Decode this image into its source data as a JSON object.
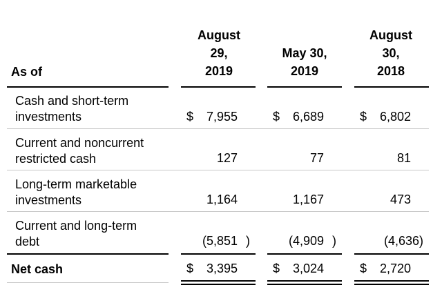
{
  "table": {
    "row_header_label": "As of",
    "columns": [
      "August\n29,\n2019",
      "May 30,\n2019",
      "August\n30,\n2018"
    ],
    "rows": [
      {
        "label": "Cash and short-term\ninvestments",
        "cells": [
          {
            "currency": "$",
            "value": "7,955",
            "close": ""
          },
          {
            "currency": "$",
            "value": "6,689",
            "close": ""
          },
          {
            "currency": "$",
            "value": "6,802",
            "close": ""
          }
        ]
      },
      {
        "label": "Current and noncurrent\nrestricted cash",
        "cells": [
          {
            "currency": "",
            "value": "127",
            "close": ""
          },
          {
            "currency": "",
            "value": "77",
            "close": ""
          },
          {
            "currency": "",
            "value": "81",
            "close": ""
          }
        ]
      },
      {
        "label": "Long-term marketable\ninvestments",
        "cells": [
          {
            "currency": "",
            "value": "1,164",
            "close": ""
          },
          {
            "currency": "",
            "value": "1,167",
            "close": ""
          },
          {
            "currency": "",
            "value": "473",
            "close": ""
          }
        ]
      },
      {
        "label": "Current and long-term\ndebt",
        "cells": [
          {
            "currency": "",
            "value": "(5,851",
            "close": ")"
          },
          {
            "currency": "",
            "value": "(4,909",
            "close": ")"
          },
          {
            "currency": "",
            "value": "(4,636",
            "close": ")"
          }
        ]
      },
      {
        "label": "Net cash",
        "cells": [
          {
            "currency": "$",
            "value": "3,395",
            "close": ""
          },
          {
            "currency": "$",
            "value": "3,024",
            "close": ""
          },
          {
            "currency": "$",
            "value": "2,720",
            "close": ""
          }
        ]
      }
    ]
  }
}
